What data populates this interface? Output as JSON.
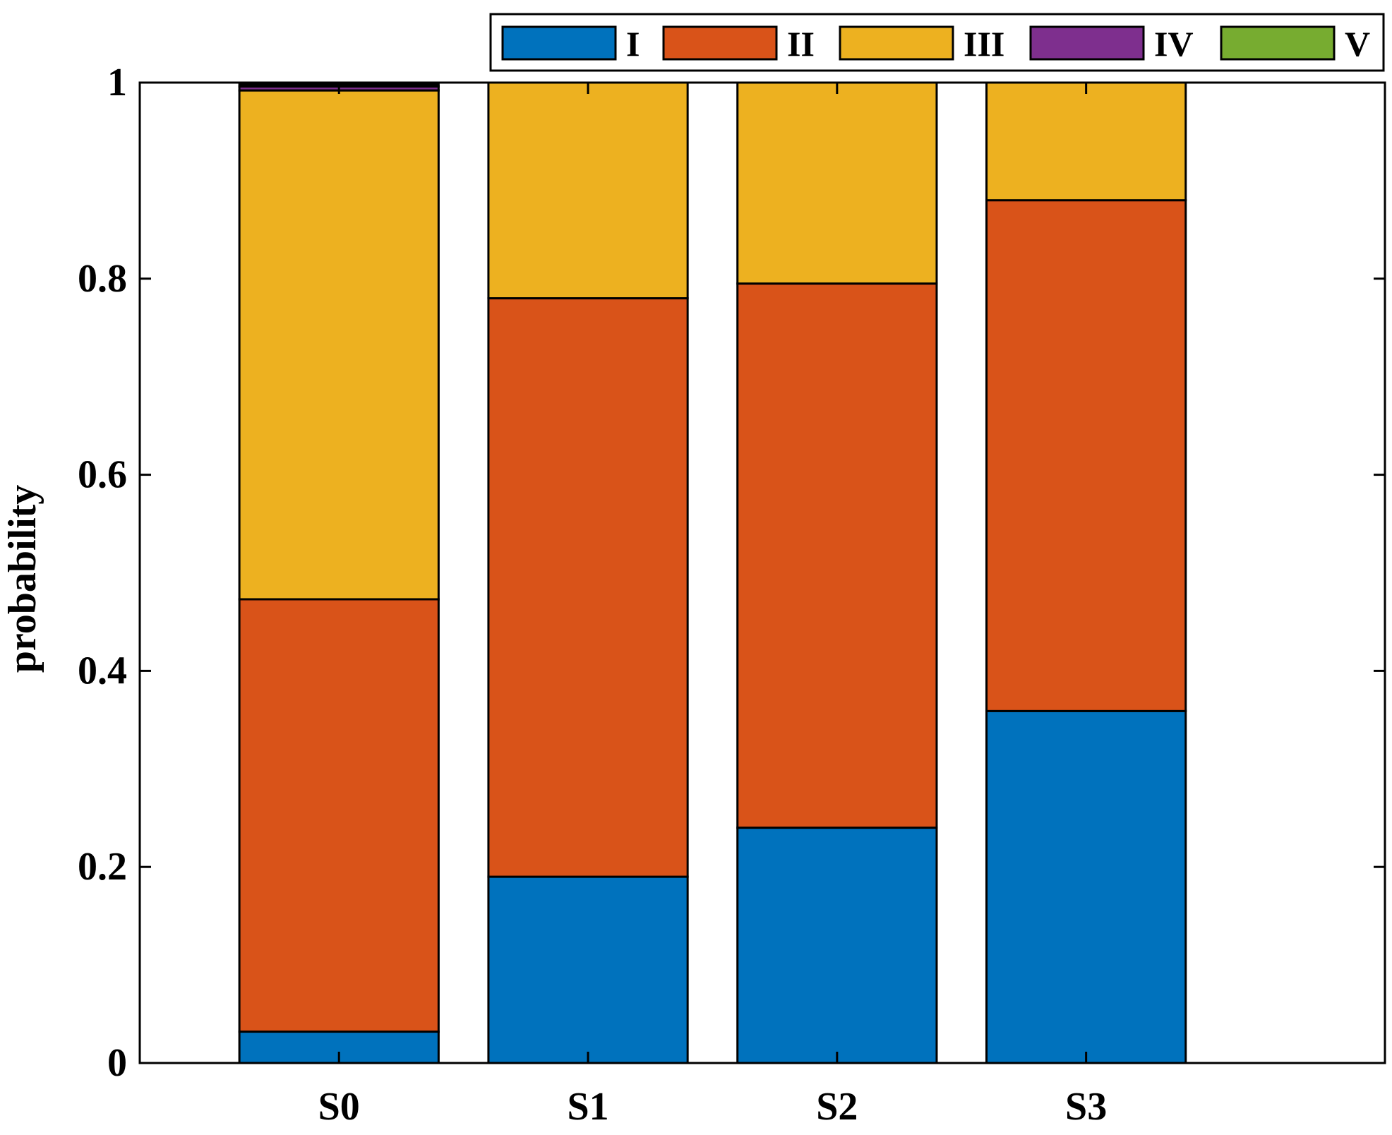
{
  "chart_data": {
    "type": "bar",
    "stacked": true,
    "categories": [
      "S0",
      "S1",
      "S2",
      "S3"
    ],
    "series": [
      {
        "name": "I",
        "color": "#0072BD",
        "values": [
          0.032,
          0.19,
          0.24,
          0.359
        ]
      },
      {
        "name": "II",
        "color": "#D95319",
        "values": [
          0.441,
          0.59,
          0.555,
          0.521
        ]
      },
      {
        "name": "III",
        "color": "#EDB120",
        "values": [
          0.519,
          0.22,
          0.205,
          0.12
        ]
      },
      {
        "name": "IV",
        "color": "#7E2F8E",
        "values": [
          0.004,
          0.0,
          0.0,
          0.0
        ]
      },
      {
        "name": "V",
        "color": "#77AC30",
        "values": [
          0.002,
          0.0,
          0.0,
          0.0
        ]
      }
    ],
    "xlim": [
      -0.8,
      4.2
    ],
    "ylim": [
      0,
      1
    ],
    "yticks": [
      "0",
      "0.2",
      "0.4",
      "0.6",
      "0.8",
      "1"
    ],
    "ytick_values": [
      0,
      0.2,
      0.4,
      0.6,
      0.8,
      1
    ],
    "ylabel": "probability",
    "xlabel": "",
    "title": "",
    "legend": {
      "placement": "top",
      "orientation": "horizontal"
    },
    "grid": false
  }
}
